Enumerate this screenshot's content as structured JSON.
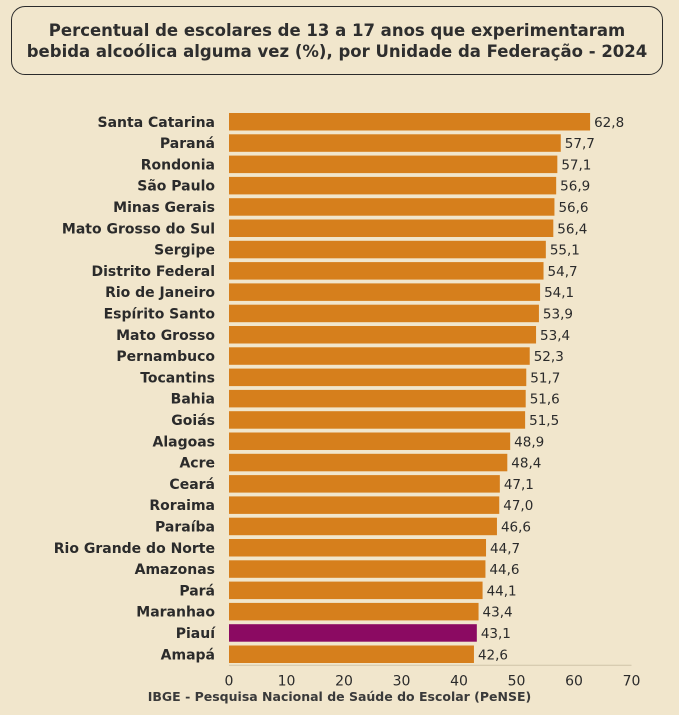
{
  "chart_data": {
    "type": "bar",
    "orientation": "horizontal",
    "title": "Percentual de escolares de 13 a 17 anos que experimentaram bebida alcoólica alguma vez (%), por Unidade da Federação - 2024",
    "source": "IBGE - Pesquisa Nacional de Saúde do Escolar (PeNSE)",
    "categories": [
      "Santa Catarina",
      "Paraná",
      "Rondonia",
      "São Paulo",
      "Minas Gerais",
      "Mato Grosso do Sul",
      "Sergipe",
      "Distrito Federal",
      "Rio de Janeiro",
      "Espírito Santo",
      "Mato Grosso",
      "Pernambuco",
      "Tocantins",
      "Bahia",
      "Goiás",
      "Alagoas",
      "Acre",
      "Ceará",
      "Roraima",
      "Paraíba",
      "Rio Grande do Norte",
      "Amazonas",
      "Pará",
      "Maranhao",
      "Piauí",
      "Amapá"
    ],
    "values": [
      62.8,
      57.7,
      57.1,
      56.9,
      56.6,
      56.4,
      55.1,
      54.7,
      54.1,
      53.9,
      53.4,
      52.3,
      51.7,
      51.6,
      51.5,
      48.9,
      48.4,
      47.1,
      47.0,
      46.6,
      44.7,
      44.6,
      44.1,
      43.4,
      43.1,
      42.6
    ],
    "value_labels": [
      "62,8",
      "57,7",
      "57,1",
      "56,9",
      "56,6",
      "56,4",
      "55,1",
      "54,7",
      "54,1",
      "53,9",
      "53,4",
      "52,3",
      "51,7",
      "51,6",
      "51,5",
      "48,9",
      "48,4",
      "47,1",
      "47,0",
      "46,6",
      "44,7",
      "44,6",
      "44,1",
      "43,4",
      "43,1",
      "42,6"
    ],
    "xlim": [
      0,
      70
    ],
    "xticks": [
      0,
      10,
      20,
      30,
      40,
      50,
      60,
      70
    ],
    "grid": false,
    "colors": {
      "default": "#d67f1c",
      "highlight": "#8b0a62"
    },
    "highlight_category": "Piauí"
  }
}
